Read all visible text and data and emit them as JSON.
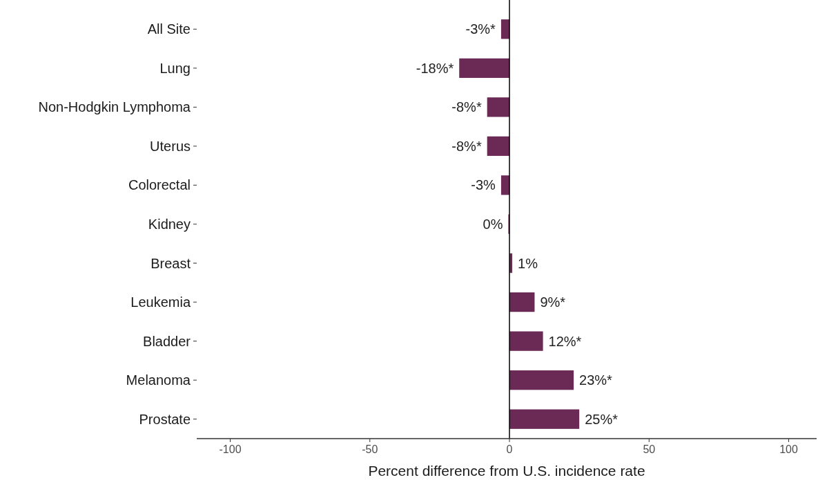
{
  "chart_data": {
    "type": "bar",
    "orientation": "horizontal",
    "xlabel": "Percent difference from U.S. incidence rate",
    "categories": [
      "All Site",
      "Lung",
      "Non-Hodgkin Lymphoma",
      "Uterus",
      "Colorectal",
      "Kidney",
      "Breast",
      "Leukemia",
      "Bladder",
      "Melanoma",
      "Prostate"
    ],
    "values": [
      -3,
      -18,
      -8,
      -8,
      -3,
      -0.4,
      1,
      9,
      12,
      23,
      25
    ],
    "value_labels": [
      "-3%*",
      "-18%*",
      "-8%*",
      "-8%*",
      "-3%",
      "0%",
      "1%",
      "9%*",
      "12%*",
      "23%*",
      "25%*"
    ],
    "color": "#6b2a56",
    "xlim": [
      -112,
      110
    ],
    "xticks": [
      -100,
      -50,
      0,
      50,
      100
    ],
    "ref_lines": [
      {
        "axis": "x",
        "value": 0,
        "color": "#000000"
      }
    ],
    "grid": false
  }
}
